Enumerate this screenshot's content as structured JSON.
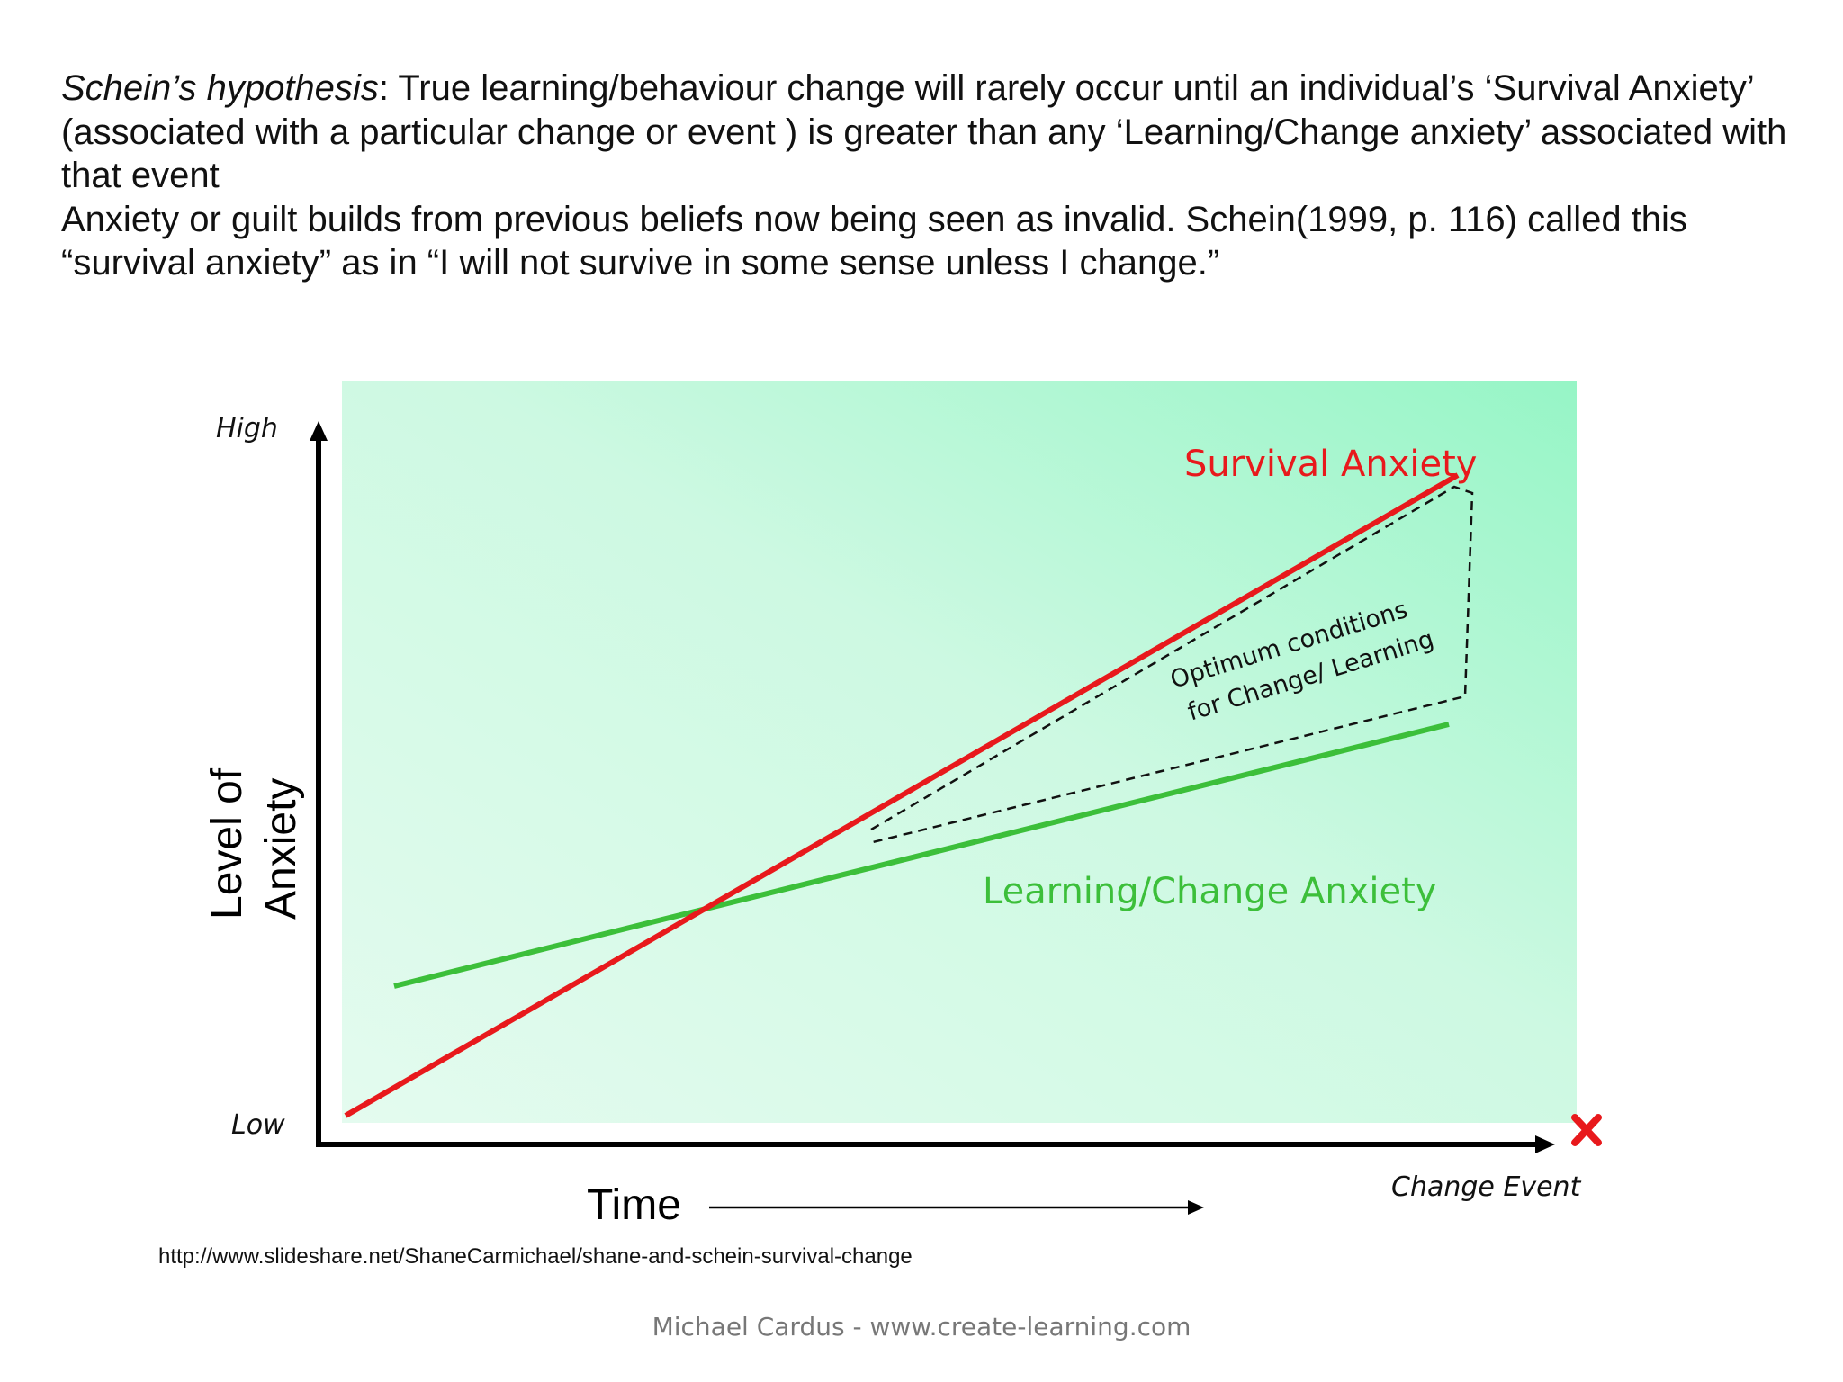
{
  "hypothesis": {
    "lead_italic": "Schein’s hypothesis",
    "lead_rest": ": True learning/behaviour change will rarely occur until an individual’s ‘Survival Anxiety’ (associated with a particular change or event ) is greater than any ‘Learning/Change anxiety’ associated with that event",
    "second_paragraph": " Anxiety or guilt builds from previous beliefs now being seen as invalid. Schein(1999, p. 116) called this “survival anxiety” as in “I will not survive in some sense unless I change.”"
  },
  "diagram": {
    "y_axis": {
      "label_line1": "Level of",
      "label_line2": "Anxiety",
      "high": "High",
      "low": "Low"
    },
    "x_axis": {
      "label": "Time",
      "end_label": "Change Event",
      "end_marker": "x-icon"
    },
    "lines": [
      {
        "name": "Survival Anxiety",
        "color": "#e8191c"
      },
      {
        "name": "Learning/Change Anxiety",
        "color": "#3cbf3a"
      }
    ],
    "region_label_line1": "Optimum conditions",
    "region_label_line2": "for Change/ Learning",
    "background_gradient": [
      "#e4fbef",
      "#96f5c6"
    ]
  },
  "source_url": "http://www.slideshare.net/ShaneCarmichael/shane-and-schein-survival-change",
  "footer": "Michael Cardus - www.create-learning.com"
}
